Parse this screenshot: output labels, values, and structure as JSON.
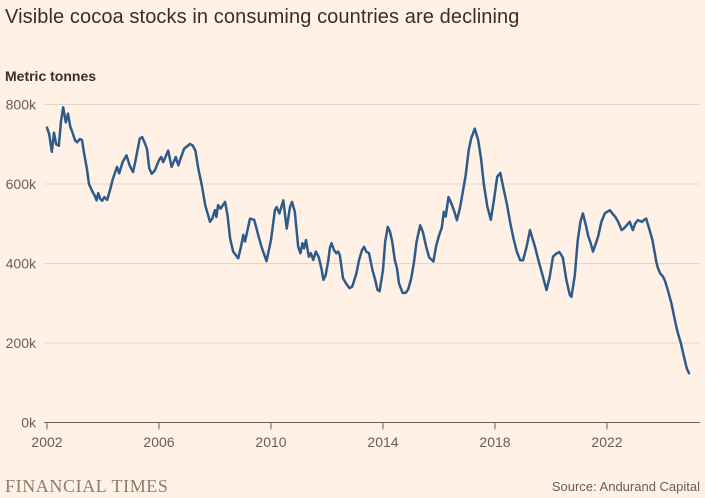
{
  "title": "Visible cocoa stocks in consuming countries are declining",
  "unit_label": "Metric tonnes",
  "footer": {
    "brand": "FINANCIAL TIMES",
    "source": "Source: Andurand Capital"
  },
  "colors": {
    "background": "#fff1e5",
    "line": "#2e5c8a",
    "grid": "#e4d6c6",
    "axis": "#66605c",
    "text_primary": "#33302e",
    "text_secondary": "#66605c",
    "brand_text": "#8a8069"
  },
  "chart_data": {
    "type": "line",
    "title": "Visible cocoa stocks in consuming countries are declining",
    "xlabel": "",
    "ylabel": "Metric tonnes",
    "y_unit": "thousand metric tonnes (k)",
    "x_unit": "year (decimal, monthly data)",
    "xlim": [
      2002,
      2025
    ],
    "ylim": [
      0,
      800
    ],
    "grid": "horizontal",
    "legend": "none",
    "y_ticks": [
      {
        "value": 0,
        "label": "0k"
      },
      {
        "value": 200,
        "label": "200k"
      },
      {
        "value": 400,
        "label": "400k"
      },
      {
        "value": 600,
        "label": "600k"
      },
      {
        "value": 800,
        "label": "800k"
      }
    ],
    "x_ticks": [
      {
        "value": 2002,
        "label": "2002"
      },
      {
        "value": 2006,
        "label": "2006"
      },
      {
        "value": 2010,
        "label": "2010"
      },
      {
        "value": 2014,
        "label": "2014"
      },
      {
        "value": 2018,
        "label": "2018"
      },
      {
        "value": 2022,
        "label": "2022"
      }
    ],
    "series": [
      {
        "name": "Visible cocoa stocks in consuming countries",
        "points": [
          [
            2002.0,
            742
          ],
          [
            2002.08,
            725
          ],
          [
            2002.17,
            681
          ],
          [
            2002.25,
            729
          ],
          [
            2002.33,
            700
          ],
          [
            2002.42,
            696
          ],
          [
            2002.5,
            758
          ],
          [
            2002.58,
            793
          ],
          [
            2002.67,
            755
          ],
          [
            2002.75,
            777
          ],
          [
            2002.83,
            745
          ],
          [
            2002.92,
            727
          ],
          [
            2003.0,
            710
          ],
          [
            2003.08,
            705
          ],
          [
            2003.17,
            713
          ],
          [
            2003.25,
            711
          ],
          [
            2003.33,
            676
          ],
          [
            2003.42,
            640
          ],
          [
            2003.5,
            600
          ],
          [
            2003.6,
            584
          ],
          [
            2003.7,
            571
          ],
          [
            2003.77,
            559
          ],
          [
            2003.83,
            577
          ],
          [
            2003.9,
            563
          ],
          [
            2003.97,
            558
          ],
          [
            2004.05,
            567
          ],
          [
            2004.15,
            560
          ],
          [
            2004.25,
            585
          ],
          [
            2004.35,
            612
          ],
          [
            2004.5,
            643
          ],
          [
            2004.58,
            627
          ],
          [
            2004.7,
            655
          ],
          [
            2004.84,
            672
          ],
          [
            2004.95,
            647
          ],
          [
            2005.07,
            630
          ],
          [
            2005.15,
            655
          ],
          [
            2005.31,
            714
          ],
          [
            2005.4,
            718
          ],
          [
            2005.5,
            702
          ],
          [
            2005.57,
            688
          ],
          [
            2005.65,
            640
          ],
          [
            2005.74,
            626
          ],
          [
            2005.85,
            634
          ],
          [
            2006.0,
            660
          ],
          [
            2006.08,
            668
          ],
          [
            2006.15,
            655
          ],
          [
            2006.33,
            684
          ],
          [
            2006.45,
            643
          ],
          [
            2006.6,
            668
          ],
          [
            2006.69,
            647
          ],
          [
            2006.8,
            670
          ],
          [
            2006.9,
            689
          ],
          [
            2007.11,
            701
          ],
          [
            2007.2,
            697
          ],
          [
            2007.3,
            684
          ],
          [
            2007.4,
            640
          ],
          [
            2007.53,
            597
          ],
          [
            2007.65,
            547
          ],
          [
            2007.82,
            505
          ],
          [
            2007.9,
            513
          ],
          [
            2008.0,
            534
          ],
          [
            2008.05,
            517
          ],
          [
            2008.11,
            547
          ],
          [
            2008.2,
            538
          ],
          [
            2008.36,
            555
          ],
          [
            2008.45,
            520
          ],
          [
            2008.54,
            463
          ],
          [
            2008.65,
            430
          ],
          [
            2008.83,
            413
          ],
          [
            2008.92,
            440
          ],
          [
            2009.01,
            472
          ],
          [
            2009.07,
            455
          ],
          [
            2009.25,
            513
          ],
          [
            2009.4,
            510
          ],
          [
            2009.55,
            470
          ],
          [
            2009.66,
            442
          ],
          [
            2009.84,
            406
          ],
          [
            2010.0,
            459
          ],
          [
            2010.14,
            534
          ],
          [
            2010.2,
            542
          ],
          [
            2010.3,
            526
          ],
          [
            2010.44,
            559
          ],
          [
            2010.56,
            488
          ],
          [
            2010.68,
            542
          ],
          [
            2010.75,
            555
          ],
          [
            2010.85,
            530
          ],
          [
            2010.97,
            442
          ],
          [
            2011.05,
            426
          ],
          [
            2011.12,
            451
          ],
          [
            2011.18,
            438
          ],
          [
            2011.25,
            459
          ],
          [
            2011.35,
            417
          ],
          [
            2011.42,
            426
          ],
          [
            2011.51,
            409
          ],
          [
            2011.6,
            430
          ],
          [
            2011.7,
            417
          ],
          [
            2011.8,
            388
          ],
          [
            2011.87,
            359
          ],
          [
            2011.95,
            370
          ],
          [
            2012.05,
            409
          ],
          [
            2012.1,
            438
          ],
          [
            2012.16,
            451
          ],
          [
            2012.25,
            434
          ],
          [
            2012.33,
            426
          ],
          [
            2012.4,
            430
          ],
          [
            2012.46,
            420
          ],
          [
            2012.57,
            363
          ],
          [
            2012.68,
            350
          ],
          [
            2012.8,
            338
          ],
          [
            2012.9,
            342
          ],
          [
            2013.05,
            375
          ],
          [
            2013.15,
            410
          ],
          [
            2013.25,
            434
          ],
          [
            2013.32,
            442
          ],
          [
            2013.4,
            430
          ],
          [
            2013.5,
            426
          ],
          [
            2013.62,
            384
          ],
          [
            2013.72,
            359
          ],
          [
            2013.8,
            334
          ],
          [
            2013.88,
            330
          ],
          [
            2014.0,
            384
          ],
          [
            2014.08,
            455
          ],
          [
            2014.17,
            492
          ],
          [
            2014.25,
            480
          ],
          [
            2014.33,
            455
          ],
          [
            2014.42,
            409
          ],
          [
            2014.5,
            388
          ],
          [
            2014.57,
            350
          ],
          [
            2014.7,
            326
          ],
          [
            2014.81,
            326
          ],
          [
            2014.9,
            335
          ],
          [
            2015.0,
            360
          ],
          [
            2015.1,
            400
          ],
          [
            2015.2,
            455
          ],
          [
            2015.33,
            496
          ],
          [
            2015.42,
            480
          ],
          [
            2015.55,
            440
          ],
          [
            2015.65,
            415
          ],
          [
            2015.8,
            405
          ],
          [
            2015.9,
            445
          ],
          [
            2016.0,
            470
          ],
          [
            2016.1,
            490
          ],
          [
            2016.17,
            530
          ],
          [
            2016.24,
            518
          ],
          [
            2016.34,
            567
          ],
          [
            2016.45,
            550
          ],
          [
            2016.55,
            530
          ],
          [
            2016.64,
            509
          ],
          [
            2016.75,
            540
          ],
          [
            2016.85,
            580
          ],
          [
            2016.95,
            620
          ],
          [
            2017.06,
            685
          ],
          [
            2017.15,
            715
          ],
          [
            2017.28,
            739
          ],
          [
            2017.4,
            710
          ],
          [
            2017.5,
            665
          ],
          [
            2017.6,
            600
          ],
          [
            2017.72,
            545
          ],
          [
            2017.85,
            510
          ],
          [
            2017.96,
            559
          ],
          [
            2018.08,
            618
          ],
          [
            2018.19,
            628
          ],
          [
            2018.3,
            590
          ],
          [
            2018.42,
            551
          ],
          [
            2018.55,
            500
          ],
          [
            2018.66,
            463
          ],
          [
            2018.78,
            430
          ],
          [
            2018.9,
            408
          ],
          [
            2019.0,
            408
          ],
          [
            2019.13,
            442
          ],
          [
            2019.25,
            484
          ],
          [
            2019.35,
            460
          ],
          [
            2019.43,
            442
          ],
          [
            2019.55,
            408
          ],
          [
            2019.7,
            370
          ],
          [
            2019.84,
            333
          ],
          [
            2019.95,
            365
          ],
          [
            2020.07,
            417
          ],
          [
            2020.19,
            425
          ],
          [
            2020.3,
            429
          ],
          [
            2020.42,
            415
          ],
          [
            2020.55,
            358
          ],
          [
            2020.67,
            321
          ],
          [
            2020.73,
            316
          ],
          [
            2020.85,
            370
          ],
          [
            2020.95,
            455
          ],
          [
            2021.05,
            505
          ],
          [
            2021.14,
            526
          ],
          [
            2021.25,
            495
          ],
          [
            2021.32,
            471
          ],
          [
            2021.42,
            450
          ],
          [
            2021.5,
            430
          ],
          [
            2021.6,
            450
          ],
          [
            2021.68,
            467
          ],
          [
            2021.8,
            505
          ],
          [
            2021.92,
            526
          ],
          [
            2022.0,
            530
          ],
          [
            2022.1,
            534
          ],
          [
            2022.2,
            525
          ],
          [
            2022.3,
            517
          ],
          [
            2022.4,
            505
          ],
          [
            2022.52,
            484
          ],
          [
            2022.6,
            488
          ],
          [
            2022.7,
            496
          ],
          [
            2022.81,
            505
          ],
          [
            2022.92,
            484
          ],
          [
            2023.0,
            500
          ],
          [
            2023.1,
            509
          ],
          [
            2023.18,
            507
          ],
          [
            2023.25,
            505
          ],
          [
            2023.33,
            510
          ],
          [
            2023.4,
            513
          ],
          [
            2023.52,
            484
          ],
          [
            2023.62,
            459
          ],
          [
            2023.7,
            429
          ],
          [
            2023.76,
            404
          ],
          [
            2023.82,
            388
          ],
          [
            2023.9,
            375
          ],
          [
            2024.0,
            367
          ],
          [
            2024.08,
            355
          ],
          [
            2024.17,
            333
          ],
          [
            2024.3,
            300
          ],
          [
            2024.4,
            266
          ],
          [
            2024.5,
            233
          ],
          [
            2024.64,
            199
          ],
          [
            2024.75,
            165
          ],
          [
            2024.85,
            136
          ],
          [
            2024.93,
            124
          ]
        ]
      }
    ]
  }
}
